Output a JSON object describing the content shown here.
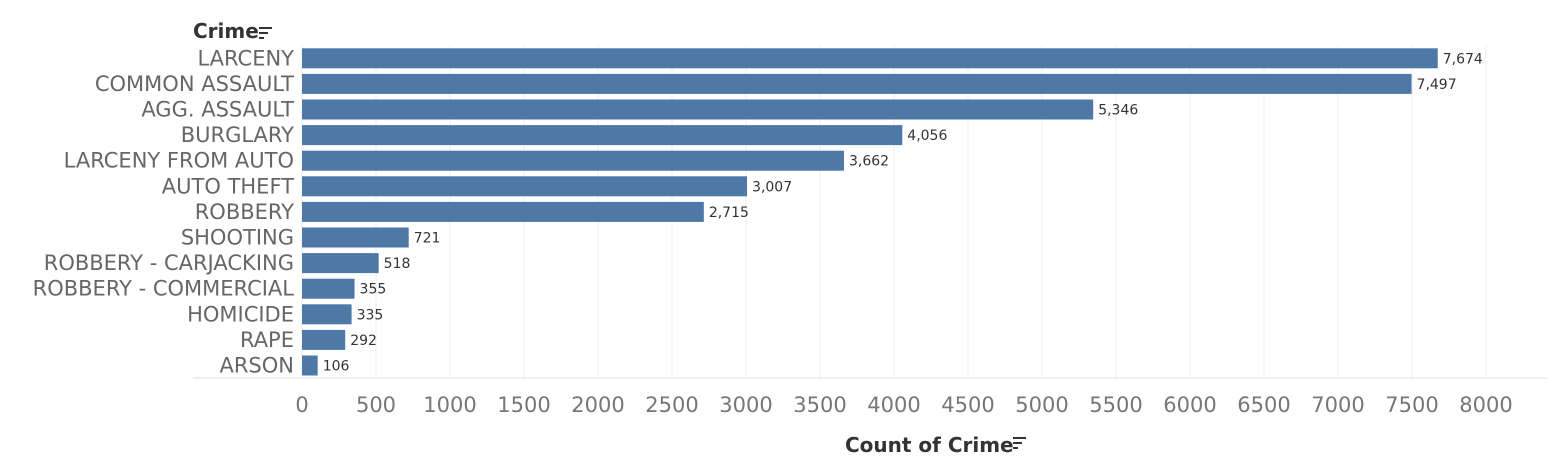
{
  "chart_data": {
    "type": "bar",
    "orientation": "horizontal",
    "ylabel": "Crime",
    "xlabel": "Count of Crime",
    "categories": [
      "LARCENY",
      "COMMON ASSAULT",
      "AGG. ASSAULT",
      "BURGLARY",
      "LARCENY FROM AUTO",
      "AUTO THEFT",
      "ROBBERY",
      "SHOOTING",
      "ROBBERY - CARJACKING",
      "ROBBERY - COMMERCIAL",
      "HOMICIDE",
      "RAPE",
      "ARSON"
    ],
    "values": [
      7674,
      7497,
      5346,
      4056,
      3662,
      3007,
      2715,
      721,
      518,
      355,
      335,
      292,
      106
    ],
    "value_labels": [
      "7,674",
      "7,497",
      "5,346",
      "4,056",
      "3,662",
      "3,007",
      "2,715",
      "721",
      "518",
      "355",
      "335",
      "292",
      "106"
    ],
    "xlim": [
      0,
      8000
    ],
    "xticks": [
      "0",
      "500",
      "1000",
      "1500",
      "2000",
      "2500",
      "3000",
      "3500",
      "4000",
      "4500",
      "5000",
      "5500",
      "6000",
      "6500",
      "7000",
      "7500",
      "8000"
    ],
    "grid": "vertical",
    "bar_color": "#4e79a7",
    "icons": {
      "row_header_sort": "sort-descending-icon",
      "axis_title_sort": "sort-descending-icon"
    }
  }
}
